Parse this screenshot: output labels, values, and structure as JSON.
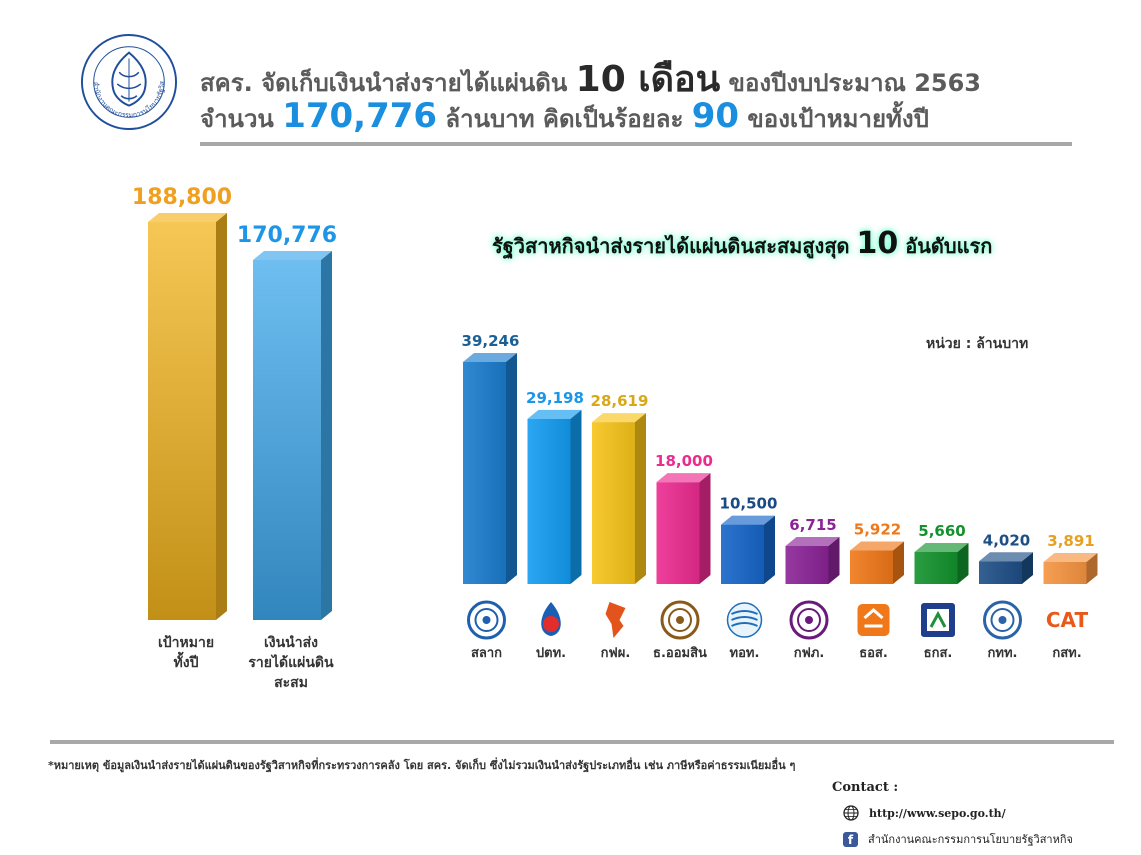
{
  "header": {
    "line1_pre": "สคร. จัดเก็บเงินนำส่งรายได้แผ่นดิน",
    "line1_big": "10 เดือน",
    "line1_post": "ของปีงบประมาณ 2563",
    "line2_pre": "จำนวน",
    "line2_amount": "170,776",
    "line2_mid": "ล้านบาท คิดเป็นร้อยละ",
    "line2_pct": "90",
    "line2_post": "ของเป้าหมายทั้งปี"
  },
  "subtitle": {
    "pre": "รัฐวิสาหกิจนำส่งรายได้แผ่นดินสะสมสูงสุด",
    "num": "10",
    "post": "อันดับแรก"
  },
  "unit_label": "หน่วย : ล้านบาท",
  "chart_data": [
    {
      "type": "bar",
      "categories": [
        "เป้าหมายทั้งปี",
        "เงินนำส่งรายได้แผ่นดินสะสม"
      ],
      "values": [
        188800,
        170776
      ],
      "value_labels": [
        "188,800",
        "170,776"
      ],
      "colors": [
        "#f3b41c",
        "#3da8ec"
      ],
      "label_colors": [
        "#f0a020",
        "#1e96e8"
      ],
      "category_lines": [
        [
          "เป้าหมาย",
          "ทั้งปี"
        ],
        [
          "เงินนำส่ง",
          "รายได้แผ่นดิน",
          "สะสม"
        ]
      ]
    },
    {
      "type": "bar",
      "categories": [
        "สลาก",
        "ปตท.",
        "กฟผ.",
        "ธ.ออมสิน",
        "ทอท.",
        "กฟภ.",
        "ธอส.",
        "ธกส.",
        "กทท.",
        "กสท."
      ],
      "values": [
        39246,
        29198,
        28619,
        18000,
        10500,
        6715,
        5922,
        5660,
        4020,
        3891
      ],
      "value_labels": [
        "39,246",
        "29,198",
        "28,619",
        "18,000",
        "10,500",
        "6,715",
        "5,922",
        "5,660",
        "4,020",
        "3,891"
      ],
      "colors": [
        "#1a7ccd",
        "#129cf0",
        "#f7c41a",
        "#ec2b90",
        "#1565c8",
        "#8a2396",
        "#f07818",
        "#13922c",
        "#1d4e86",
        "#f59440"
      ],
      "label_colors": [
        "#1a5f96",
        "#1a96e8",
        "#d8a818",
        "#ec2b90",
        "#1a4a86",
        "#8a2396",
        "#f07818",
        "#13922c",
        "#1d4e86",
        "#e8a020"
      ],
      "logo_icons": [
        "salak-logo-icon",
        "ptt-logo-icon",
        "egat-logo-icon",
        "gsb-logo-icon",
        "aot-logo-icon",
        "pea-logo-icon",
        "ghb-logo-icon",
        "baac-logo-icon",
        "pat-logo-icon",
        "cat-logo-icon"
      ],
      "cat_logo_text": "CAT",
      "unit": "ล้านบาท"
    }
  ],
  "footnote": "*หมายเหตุ ข้อมูลเงินนำส่งรายได้แผ่นดินของรัฐวิสาหกิจที่กระทรวงการคลัง โดย สคร. จัดเก็บ ซึ่งไม่รวมเงินนำส่งรัฐประเภทอื่น เช่น ภาษีหรือค่าธรรมเนียมอื่น ๆ",
  "contact": {
    "label": "Contact :",
    "website": "http://www.sepo.go.th/",
    "facebook": "สำนักงานคณะกรรมการนโยบายรัฐวิสาหกิจ",
    "globe_icon": "globe-icon",
    "facebook_icon": "facebook-icon",
    "facebook_glyph": "f"
  },
  "seal_text": "สำนักงานคณะกรรมการนโยบายรัฐวิสาหกิจ"
}
